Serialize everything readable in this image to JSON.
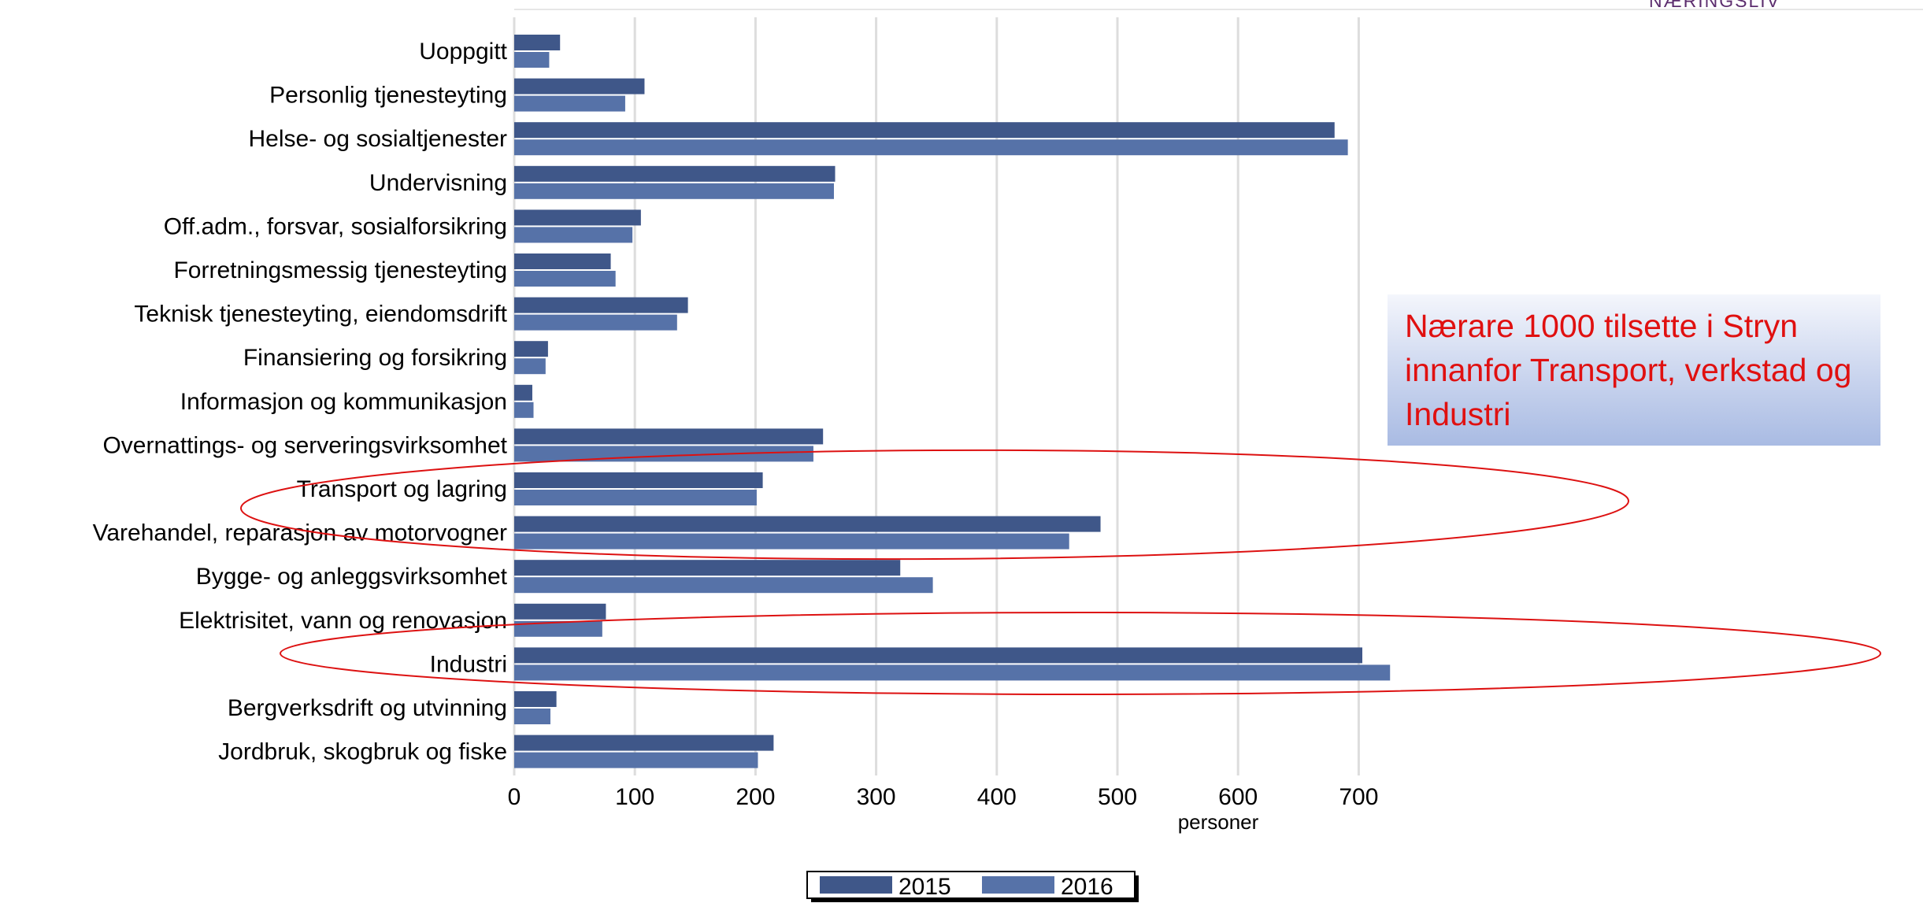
{
  "logo_text": "NÆRINGSLIV",
  "annotation": "Nærare 1000 tilsette i Stryn innanfor Transport, verkstad og Industri",
  "colors": {
    "series_2015": "#3f5789",
    "series_2016": "#5672a8",
    "grid": "#dddddd",
    "highlight": "#dd1111",
    "annotation_text": "#e01010"
  },
  "chart_data": {
    "type": "bar",
    "orientation": "horizontal",
    "categories": [
      "Uoppgitt",
      "Personlig tjenesteyting",
      "Helse- og sosialtjenester",
      "Undervisning",
      "Off.adm., forsvar, sosialforsikring",
      "Forretningsmessig tjenesteyting",
      "Teknisk tjenesteyting, eiendomsdrift",
      "Finansiering og forsikring",
      "Informasjon og kommunikasjon",
      "Overnattings- og serveringsvirksomhet",
      "Transport og lagring",
      "Varehandel, reparasjon av motorvogner",
      "Bygge- og anleggsvirksomhet",
      "Elektrisitet, vann og renovasjon",
      "Industri",
      "Bergverksdrift og utvinning",
      "Jordbruk, skogbruk og fiske"
    ],
    "series": [
      {
        "name": "2015",
        "values": [
          38,
          108,
          680,
          266,
          105,
          80,
          144,
          28,
          15,
          256,
          206,
          486,
          320,
          76,
          703,
          35,
          215
        ]
      },
      {
        "name": "2016",
        "values": [
          29,
          92,
          691,
          265,
          98,
          84,
          135,
          26,
          16,
          248,
          201,
          460,
          347,
          73,
          726,
          30,
          202
        ]
      }
    ],
    "xlabel": "personer",
    "ylabel": "",
    "xlim": [
      0,
      770
    ],
    "xticks": [
      0,
      100,
      200,
      300,
      400,
      500,
      600,
      700
    ],
    "grid": true,
    "legend_position": "bottom",
    "highlighted_categories": [
      "Transport og lagring",
      "Varehandel, reparasjon av motorvogner",
      "Industri"
    ]
  }
}
